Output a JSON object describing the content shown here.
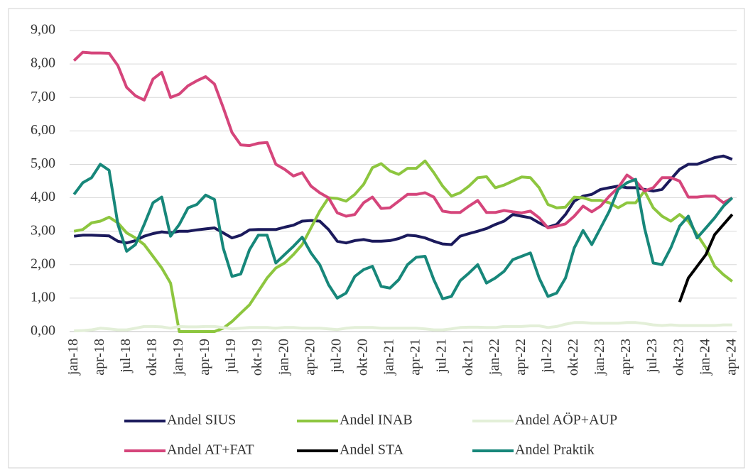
{
  "chart_data": {
    "type": "line",
    "categories": [
      "jan-18",
      null,
      null,
      "apr-18",
      null,
      null,
      "jul-18",
      null,
      null,
      "okt-18",
      null,
      null,
      "jan-19",
      null,
      null,
      "apr-19",
      null,
      null,
      "jul-19",
      null,
      null,
      "okt-19",
      null,
      null,
      "jan-20",
      null,
      null,
      "apr-20",
      null,
      null,
      "jul-20",
      null,
      null,
      "okt-20",
      null,
      null,
      "jan-21",
      null,
      null,
      "apr-21",
      null,
      null,
      "jul-21",
      null,
      null,
      "okt-21",
      null,
      null,
      "jan-22",
      null,
      null,
      "apr-22",
      null,
      null,
      "jul-22",
      null,
      null,
      "okt-22",
      null,
      null,
      "jan-23",
      null,
      null,
      "apr-23",
      null,
      null,
      "jul-23",
      null,
      null,
      "okt-23",
      null,
      null,
      "jan-24",
      null,
      null,
      "apr-24"
    ],
    "ylim": [
      0,
      9
    ],
    "yticks": [
      {
        "value": 0,
        "label": "0,00"
      },
      {
        "value": 1,
        "label": "1,00"
      },
      {
        "value": 2,
        "label": "2,00"
      },
      {
        "value": 3,
        "label": "3,00"
      },
      {
        "value": 4,
        "label": "4,00"
      },
      {
        "value": 5,
        "label": "5,00"
      },
      {
        "value": 6,
        "label": "6,00"
      },
      {
        "value": 7,
        "label": "7,00"
      },
      {
        "value": 8,
        "label": "8,00"
      },
      {
        "value": 9,
        "label": "9,00"
      }
    ],
    "grid": true,
    "legend": "bottom",
    "series": [
      {
        "name": "Andel SIUS",
        "color": "#1b1a5c",
        "values": [
          2.85,
          2.88,
          2.88,
          2.87,
          2.86,
          2.7,
          2.65,
          2.72,
          2.85,
          2.93,
          2.98,
          2.95,
          3.0,
          3.0,
          3.04,
          3.07,
          3.1,
          2.95,
          2.8,
          2.88,
          3.04,
          3.05,
          3.05,
          3.05,
          3.12,
          3.18,
          3.3,
          3.32,
          3.3,
          3.05,
          2.7,
          2.65,
          2.72,
          2.75,
          2.7,
          2.7,
          2.72,
          2.78,
          2.88,
          2.86,
          2.8,
          2.7,
          2.62,
          2.6,
          2.85,
          2.93,
          3.0,
          3.08,
          3.2,
          3.3,
          3.5,
          3.45,
          3.4,
          3.25,
          3.12,
          3.2,
          3.5,
          3.9,
          4.05,
          4.1,
          4.25,
          4.3,
          4.35,
          4.3,
          4.3,
          4.25,
          4.2,
          4.25,
          4.55,
          4.85,
          5.0,
          5.0,
          5.1,
          5.2,
          5.25,
          5.15
        ]
      },
      {
        "name": "Andel INAB",
        "color": "#8dc63f",
        "values": [
          3.0,
          3.05,
          3.25,
          3.3,
          3.42,
          3.25,
          2.95,
          2.8,
          2.6,
          2.25,
          1.9,
          1.45,
          0.0,
          0.0,
          0.0,
          0.0,
          0.0,
          0.1,
          0.3,
          0.55,
          0.8,
          1.2,
          1.6,
          1.9,
          2.05,
          2.3,
          2.6,
          3.1,
          3.6,
          4.0,
          3.98,
          3.9,
          4.1,
          4.4,
          4.9,
          5.02,
          4.8,
          4.7,
          4.88,
          4.88,
          5.1,
          4.75,
          4.35,
          4.05,
          4.15,
          4.35,
          4.6,
          4.63,
          4.3,
          4.38,
          4.5,
          4.62,
          4.6,
          4.3,
          3.8,
          3.7,
          3.72,
          4.02,
          4.0,
          3.92,
          3.92,
          3.85,
          3.7,
          3.85,
          3.85,
          4.2,
          3.7,
          3.45,
          3.3,
          3.5,
          3.3,
          2.9,
          2.5,
          1.95,
          1.7,
          1.5
        ]
      },
      {
        "name": "Andel AÖP+AUP",
        "color": "#e3efd8",
        "values": [
          0.02,
          0.03,
          0.05,
          0.1,
          0.08,
          0.05,
          0.05,
          0.1,
          0.15,
          0.15,
          0.14,
          0.1,
          0.15,
          0.14,
          0.14,
          0.15,
          0.15,
          0.12,
          0.08,
          0.1,
          0.12,
          0.12,
          0.12,
          0.1,
          0.12,
          0.12,
          0.1,
          0.1,
          0.1,
          0.08,
          0.06,
          0.1,
          0.12,
          0.12,
          0.12,
          0.1,
          0.1,
          0.1,
          0.1,
          0.1,
          0.08,
          0.05,
          0.05,
          0.08,
          0.12,
          0.13,
          0.13,
          0.12,
          0.12,
          0.15,
          0.15,
          0.15,
          0.17,
          0.17,
          0.12,
          0.15,
          0.22,
          0.27,
          0.27,
          0.25,
          0.25,
          0.25,
          0.25,
          0.27,
          0.27,
          0.24,
          0.2,
          0.18,
          0.2,
          0.18,
          0.18,
          0.18,
          0.18,
          0.18,
          0.2,
          0.2
        ]
      },
      {
        "name": "Andel AT+FAT",
        "color": "#d5457b",
        "values": [
          8.1,
          8.35,
          8.33,
          8.33,
          8.32,
          7.95,
          7.3,
          7.05,
          6.92,
          7.55,
          7.75,
          7.0,
          7.1,
          7.35,
          7.5,
          7.62,
          7.4,
          6.7,
          5.95,
          5.58,
          5.56,
          5.63,
          5.65,
          5.0,
          4.85,
          4.65,
          4.75,
          4.35,
          4.15,
          4.0,
          3.55,
          3.45,
          3.5,
          3.85,
          4.02,
          3.68,
          3.7,
          3.9,
          4.1,
          4.1,
          4.15,
          4.02,
          3.6,
          3.56,
          3.56,
          3.75,
          3.92,
          3.56,
          3.56,
          3.62,
          3.58,
          3.55,
          3.6,
          3.4,
          3.1,
          3.15,
          3.22,
          3.45,
          3.75,
          3.58,
          3.75,
          4.05,
          4.3,
          4.68,
          4.5,
          4.2,
          4.3,
          4.6,
          4.6,
          4.5,
          4.02,
          4.02,
          4.05,
          4.05,
          3.85,
          4.0
        ]
      },
      {
        "name": "Andel STA",
        "color": "#000000",
        "values": [
          null,
          null,
          null,
          null,
          null,
          null,
          null,
          null,
          null,
          null,
          null,
          null,
          null,
          null,
          null,
          null,
          null,
          null,
          null,
          null,
          null,
          null,
          null,
          null,
          null,
          null,
          null,
          null,
          null,
          null,
          null,
          null,
          null,
          null,
          null,
          null,
          null,
          null,
          null,
          null,
          null,
          null,
          null,
          null,
          null,
          null,
          null,
          null,
          null,
          null,
          null,
          null,
          null,
          null,
          null,
          null,
          null,
          null,
          null,
          null,
          null,
          null,
          null,
          null,
          null,
          null,
          null,
          null,
          null,
          0.88,
          1.6,
          1.95,
          2.3,
          2.9,
          3.2,
          3.5
        ]
      },
      {
        "name": "Andel Praktik",
        "color": "#17877a",
        "values": [
          4.1,
          4.45,
          4.6,
          5.0,
          4.82,
          3.2,
          2.4,
          2.6,
          3.2,
          3.85,
          4.02,
          2.85,
          3.2,
          3.7,
          3.8,
          4.08,
          3.95,
          2.5,
          1.65,
          1.72,
          2.45,
          2.88,
          2.88,
          2.05,
          2.3,
          2.55,
          2.82,
          2.35,
          2.0,
          1.4,
          1.0,
          1.15,
          1.65,
          1.85,
          1.95,
          1.35,
          1.3,
          1.55,
          2.0,
          2.22,
          2.25,
          1.55,
          0.98,
          1.05,
          1.52,
          1.75,
          2.0,
          1.45,
          1.6,
          1.8,
          2.15,
          2.25,
          2.35,
          1.6,
          1.05,
          1.15,
          1.6,
          2.5,
          3.02,
          2.6,
          3.1,
          3.6,
          4.25,
          4.45,
          4.55,
          3.1,
          2.05,
          2.0,
          2.5,
          3.15,
          3.45,
          2.8,
          3.1,
          3.4,
          3.75,
          4.0
        ]
      }
    ]
  }
}
